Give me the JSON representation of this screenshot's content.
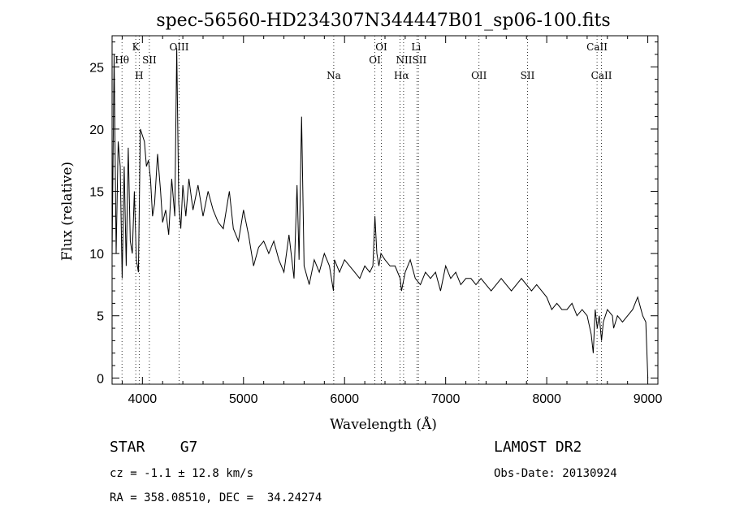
{
  "chart_data": {
    "type": "line",
    "title": "spec-56560-HD234307N344447B01_sp06-100.fits",
    "xlabel": "Wavelength (Å)",
    "ylabel": "Flux (relative)",
    "xlim": [
      3700,
      9100
    ],
    "ylim": [
      -0.5,
      27.5
    ],
    "xticks": [
      4000,
      5000,
      6000,
      7000,
      8000,
      9000
    ],
    "yticks": [
      0,
      5,
      10,
      15,
      20,
      25
    ],
    "grid": false,
    "series": [
      {
        "x": [
          3700,
          3720,
          3740,
          3760,
          3780,
          3800,
          3820,
          3840,
          3860,
          3880,
          3900,
          3920,
          3940,
          3960,
          3980,
          4000,
          4020,
          4040,
          4060,
          4080,
          4100,
          4120,
          4150,
          4180,
          4200,
          4230,
          4260,
          4290,
          4320,
          4340,
          4360,
          4380,
          4400,
          4430,
          4460,
          4500,
          4550,
          4600,
          4650,
          4700,
          4750,
          4800,
          4850,
          4860,
          4900,
          4950,
          5000,
          5050,
          5100,
          5150,
          5200,
          5250,
          5300,
          5350,
          5400,
          5450,
          5500,
          5530,
          5550,
          5575,
          5600,
          5650,
          5700,
          5750,
          5800,
          5850,
          5890,
          5900,
          5950,
          6000,
          6050,
          6100,
          6150,
          6200,
          6250,
          6280,
          6300,
          6320,
          6340,
          6360,
          6400,
          6450,
          6500,
          6550,
          6563,
          6600,
          6650,
          6700,
          6750,
          6800,
          6850,
          6900,
          6950,
          7000,
          7050,
          7100,
          7150,
          7200,
          7250,
          7300,
          7350,
          7400,
          7450,
          7500,
          7550,
          7600,
          7650,
          7700,
          7750,
          7800,
          7850,
          7900,
          7950,
          8000,
          8050,
          8100,
          8150,
          8200,
          8250,
          8300,
          8350,
          8400,
          8440,
          8460,
          8480,
          8500,
          8520,
          8542,
          8560,
          8600,
          8650,
          8662,
          8700,
          8750,
          8800,
          8850,
          8900,
          8950,
          8980,
          9000
        ],
        "y": [
          10.0,
          26.0,
          10.0,
          19.0,
          17.0,
          8.0,
          17.0,
          9.0,
          18.5,
          11.0,
          10.0,
          15.0,
          9.5,
          8.5,
          20.0,
          19.5,
          19.0,
          17.0,
          17.5,
          16.0,
          13.0,
          14.0,
          18.0,
          15.0,
          12.5,
          13.5,
          11.5,
          16.0,
          13.0,
          26.5,
          14.0,
          12.0,
          15.5,
          13.0,
          16.0,
          13.5,
          15.5,
          13.0,
          15.0,
          13.5,
          12.5,
          12.0,
          14.5,
          15.0,
          12.0,
          11.0,
          13.5,
          11.5,
          9.0,
          10.5,
          11.0,
          10.0,
          11.0,
          9.5,
          8.5,
          11.5,
          8.0,
          15.5,
          9.5,
          21.0,
          9.0,
          7.5,
          9.5,
          8.5,
          10.0,
          9.0,
          7.0,
          9.5,
          8.5,
          9.5,
          9.0,
          8.5,
          8.0,
          9.0,
          8.5,
          9.0,
          13.0,
          10.0,
          9.0,
          10.0,
          9.5,
          9.0,
          9.0,
          8.0,
          7.0,
          8.5,
          9.5,
          8.0,
          7.5,
          8.5,
          8.0,
          8.5,
          7.0,
          9.0,
          8.0,
          8.5,
          7.5,
          8.0,
          8.0,
          7.5,
          8.0,
          7.5,
          7.0,
          7.5,
          8.0,
          7.5,
          7.0,
          7.5,
          8.0,
          7.5,
          7.0,
          7.5,
          7.0,
          6.5,
          5.5,
          6.0,
          5.5,
          5.5,
          6.0,
          5.0,
          5.5,
          5.0,
          3.5,
          2.0,
          5.5,
          4.0,
          5.0,
          3.0,
          4.5,
          5.5,
          5.0,
          4.0,
          5.0,
          4.5,
          5.0,
          5.5,
          6.5,
          5.0,
          4.5,
          0.0
        ]
      }
    ],
    "lines_top": [
      {
        "label": "K",
        "x": 3934
      },
      {
        "label": "OIII",
        "x": 4363
      },
      {
        "label": "OI",
        "x": 6364
      },
      {
        "label": "Li",
        "x": 6708
      },
      {
        "label": "CaII",
        "x": 8498
      }
    ],
    "lines_mid": [
      {
        "label": "Hθ",
        "x": 3798
      },
      {
        "label": "SII",
        "x": 4069
      },
      {
        "label": "OI",
        "x": 6300
      },
      {
        "label": "NIISII",
        "x": 6660
      },
      {
        "label": "H",
        "x": 3968
      },
      {
        "label": "Na",
        "x": 5893
      },
      {
        "label": "Hα",
        "x": 6563
      },
      {
        "label": "OII",
        "x": 7330
      },
      {
        "label": "SII",
        "x": 7810
      },
      {
        "label": "CaII",
        "x": 8542
      }
    ],
    "line_markers": [
      3798,
      3934,
      3968,
      4069,
      4363,
      5893,
      6300,
      6364,
      6548,
      6584,
      6716,
      6731,
      7330,
      7810,
      8498,
      8542
    ]
  },
  "info": {
    "object": "STAR    G7",
    "survey": "LAMOST DR2",
    "cz": "cz = -1.1 ± 12.8 km/s",
    "obs_date": "Obs-Date: 20130924",
    "coords": "RA = 358.08510, DEC =  34.24274"
  }
}
